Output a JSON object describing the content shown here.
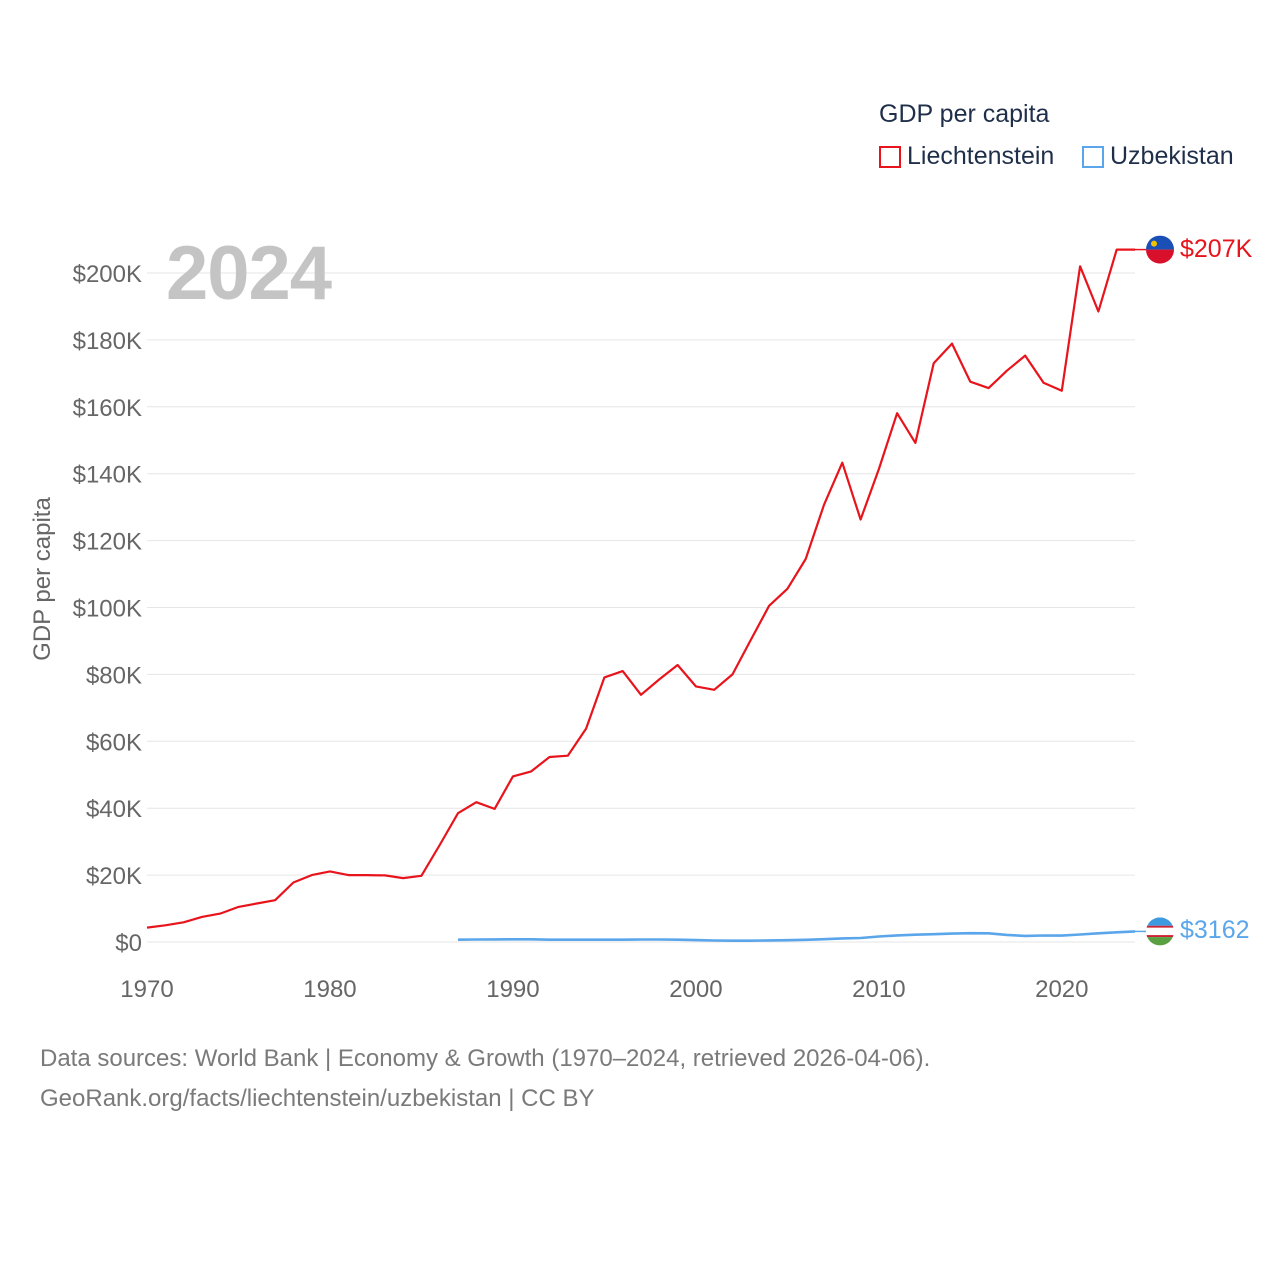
{
  "legend": {
    "title": "GDP per capita",
    "items": [
      {
        "label": "Liechtenstein",
        "color": "#e8141c"
      },
      {
        "label": "Uzbekistan",
        "color": "#5ba6ea"
      }
    ]
  },
  "year_label": "2024",
  "footer": {
    "line1": "Data sources: World Bank | Economy & Growth (1970–2024, retrieved 2026-04-06).",
    "line2": "GeoRank.org/facts/liechtenstein/uzbekistan | CC BY"
  },
  "chart_data": {
    "type": "line",
    "ylabel": "GDP per capita",
    "xlabel": "",
    "xlim": [
      1970,
      2024
    ],
    "ylim": [
      0,
      200000
    ],
    "x_ticks": [
      1970,
      1980,
      1990,
      2000,
      2010,
      2020
    ],
    "x_tick_labels": [
      "1970",
      "1980",
      "1990",
      "2000",
      "2010",
      "2020"
    ],
    "y_ticks": [
      0,
      20000,
      40000,
      60000,
      80000,
      100000,
      120000,
      140000,
      160000,
      180000,
      200000
    ],
    "y_tick_labels": [
      "$0",
      "$20K",
      "$40K",
      "$60K",
      "$80K",
      "$100K",
      "$120K",
      "$140K",
      "$160K",
      "$180K",
      "$200K"
    ],
    "grid": true,
    "series": [
      {
        "name": "Liechtenstein",
        "color": "#e8141c",
        "end_label": "$207K",
        "x": [
          1970,
          1971,
          1972,
          1973,
          1974,
          1975,
          1976,
          1977,
          1978,
          1979,
          1980,
          1981,
          1982,
          1983,
          1984,
          1985,
          1986,
          1987,
          1988,
          1989,
          1990,
          1991,
          1992,
          1993,
          1994,
          1995,
          1996,
          1997,
          1998,
          1999,
          2000,
          2001,
          2002,
          2003,
          2004,
          2005,
          2006,
          2007,
          2008,
          2009,
          2010,
          2011,
          2012,
          2013,
          2014,
          2015,
          2016,
          2017,
          2018,
          2019,
          2020,
          2021,
          2022,
          2023,
          2024
        ],
        "values": [
          4300,
          5000,
          5900,
          7500,
          8500,
          10500,
          11500,
          12500,
          17800,
          20000,
          21100,
          20000,
          20000,
          19900,
          19100,
          19800,
          29000,
          38500,
          41800,
          39800,
          49500,
          51000,
          55300,
          55700,
          63800,
          79100,
          81000,
          73900,
          78500,
          82800,
          76400,
          75400,
          80000,
          90300,
          100500,
          105600,
          114500,
          130700,
          143300,
          126300,
          141400,
          158100,
          149200,
          173000,
          178900,
          167500,
          165600,
          170800,
          175300,
          167200,
          164800,
          202000,
          188500,
          207000,
          207000
        ]
      },
      {
        "name": "Uzbekistan",
        "color": "#5ba6ea",
        "end_label": "$3162",
        "x": [
          1987,
          1988,
          1989,
          1990,
          1991,
          1992,
          1993,
          1994,
          1995,
          1996,
          1997,
          1998,
          1999,
          2000,
          2001,
          2002,
          2003,
          2004,
          2005,
          2006,
          2007,
          2008,
          2009,
          2010,
          2011,
          2012,
          2013,
          2014,
          2015,
          2016,
          2017,
          2018,
          2019,
          2020,
          2021,
          2022,
          2023,
          2024
        ],
        "values": [
          700,
          750,
          780,
          800,
          800,
          700,
          700,
          700,
          700,
          700,
          750,
          750,
          700,
          560,
          460,
          380,
          400,
          470,
          550,
          650,
          830,
          1080,
          1210,
          1630,
          1960,
          2190,
          2340,
          2500,
          2640,
          2610,
          2110,
          1830,
          1930,
          1900,
          2250,
          2600,
          2900,
          3162
        ]
      }
    ]
  }
}
